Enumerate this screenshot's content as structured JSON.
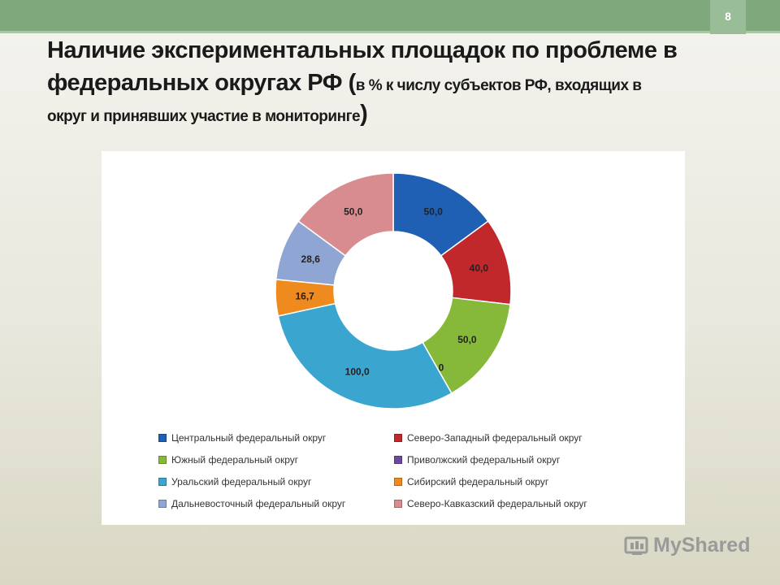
{
  "slide": {
    "number": "8"
  },
  "title": {
    "line1": "Наличие экспериментальных площадок по проблеме в",
    "line2_main": "федеральных округах РФ ",
    "paren_open": "(",
    "line2_small": "в % к числу субъектов РФ, входящих в",
    "line3": "округ и принявших участие в мониторинге",
    "paren_close": ")"
  },
  "chart_data": {
    "type": "pie",
    "donut": true,
    "slices": [
      {
        "label": "Центральный федеральный округ",
        "value": 50.0,
        "value_label": "50,0",
        "color": "#1f5fb4"
      },
      {
        "label": "Северо-Западный федеральный округ",
        "value": 40.0,
        "value_label": "40,0",
        "color": "#c0282b"
      },
      {
        "label": "Южный федеральный округ",
        "value": 50.0,
        "value_label": "50,0",
        "color": "#86b83a"
      },
      {
        "label": "Приволжский федеральный округ",
        "value": 0.0,
        "value_label": "0,0",
        "color": "#6a4a9c"
      },
      {
        "label": "Уральский федеральный округ",
        "value": 100.0,
        "value_label": "100,0",
        "color": "#3aa6cf"
      },
      {
        "label": "Сибирский федеральный округ",
        "value": 16.7,
        "value_label": "16,7",
        "color": "#ef8a1e"
      },
      {
        "label": "Дальневосточный федеральный округ",
        "value": 28.6,
        "value_label": "28,6",
        "color": "#8fa6d4"
      },
      {
        "label": "Северо-Кавказский федеральный округ",
        "value": 50.0,
        "value_label": "50,0",
        "color": "#d98c8f"
      }
    ],
    "legend_placement": "bottom",
    "legend_order": [
      0,
      1,
      2,
      3,
      4,
      5,
      6,
      7
    ]
  },
  "watermark": {
    "text": "MyShared"
  }
}
